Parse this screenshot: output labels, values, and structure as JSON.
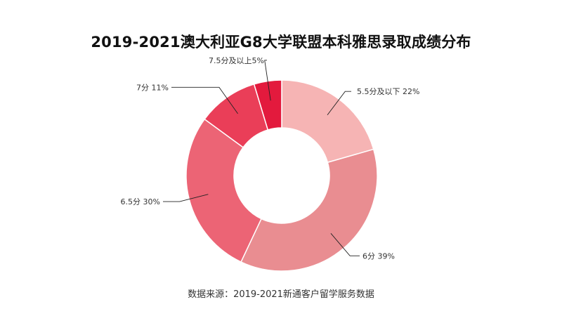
{
  "chart_data": {
    "type": "pie",
    "variant": "donut",
    "title": "2019-2021澳大利亚G8大学联盟本科雅思录取成绩分布",
    "categories": [
      "5.5分及以下",
      "6分",
      "6.5分",
      "7分",
      "7.5分及以上"
    ],
    "values": [
      22,
      39,
      30,
      11,
      5
    ],
    "unit": "%",
    "labels": [
      "5.5分及以下 22%",
      "6分 39%",
      "6.5分 30%",
      "7分 11%",
      "7.5分及以上5%"
    ],
    "colors": [
      "#f6b4b4",
      "#e98d91",
      "#ec6475",
      "#ea3e58",
      "#e31a3d"
    ],
    "legend": "none"
  },
  "footer": {
    "source": "数据来源：2019-2021新通客户留学服务数据"
  }
}
